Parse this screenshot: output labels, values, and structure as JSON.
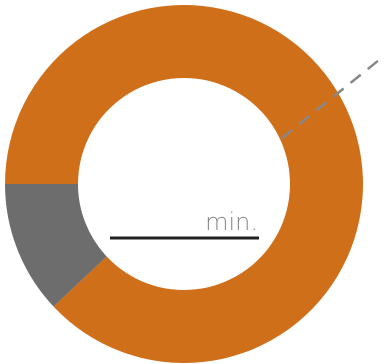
{
  "chart_data": {
    "type": "pie",
    "style": "donut",
    "slices": [
      {
        "value": 88,
        "color": "#cf6f1a"
      },
      {
        "value": 12,
        "color": "#6d6d6d"
      }
    ],
    "start_angle_deg": 180,
    "center_label": "min.",
    "colors": {
      "label": "#888888",
      "underline": "#222222",
      "leader_line": "#888888"
    }
  }
}
